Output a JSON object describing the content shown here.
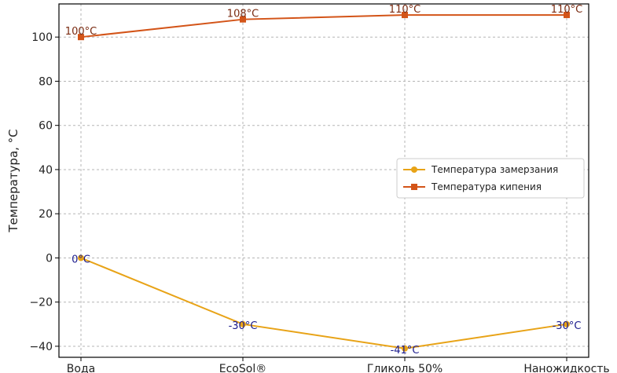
{
  "chart_data": {
    "type": "line",
    "categories": [
      "Вода",
      "EcoSol®",
      "Гликоль 50%",
      "Наножидкость"
    ],
    "ylabel": "Температура, °C",
    "ylim": [
      -45,
      115
    ],
    "yticks": [
      "100",
      "80",
      "60",
      "40",
      "20",
      "0",
      "−20",
      "−40"
    ],
    "grid": true,
    "legend_position": "center-right",
    "series": [
      {
        "name": "Температура замерзания",
        "values": [
          0,
          -30,
          -41,
          -30
        ],
        "labels": [
          "0°C",
          "-30°C",
          "-41°C",
          "-30°C"
        ],
        "color": "#e8a317",
        "label_color": "#1a1a8c",
        "marker": "circle"
      },
      {
        "name": "Температура кипения",
        "values": [
          100,
          108,
          110,
          110
        ],
        "labels": [
          "100°C",
          "108°C",
          "110°C",
          "110°C"
        ],
        "color": "#d35418",
        "label_color": "#7a2a10",
        "marker": "square"
      }
    ]
  }
}
